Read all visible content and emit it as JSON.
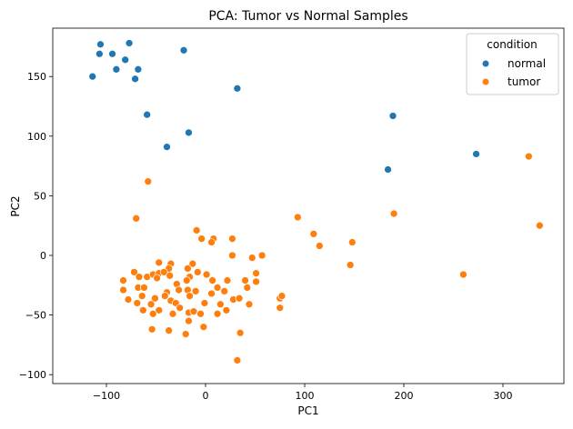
{
  "chart_data": {
    "type": "scatter",
    "title": "PCA: Tumor vs Normal Samples",
    "xlabel": "PC1",
    "ylabel": "PC2",
    "xlim": [
      -130,
      345
    ],
    "ylim": [
      -107,
      190
    ],
    "xticks": [
      -100,
      0,
      100,
      200,
      300
    ],
    "yticks": [
      -100,
      -50,
      0,
      50,
      100,
      150
    ],
    "grid": false,
    "legend": {
      "title": "condition",
      "placement": "top-right"
    },
    "series": [
      {
        "name": "normal",
        "color": "#1f77b4",
        "points": [
          [
            -114,
            150
          ],
          [
            -106,
            177
          ],
          [
            -107,
            169
          ],
          [
            -94,
            169
          ],
          [
            -90,
            156
          ],
          [
            -81,
            164
          ],
          [
            -77,
            178
          ],
          [
            -68,
            156
          ],
          [
            -71,
            148
          ],
          [
            -22,
            172
          ],
          [
            -59,
            118
          ],
          [
            -39,
            91
          ],
          [
            -17,
            103
          ],
          [
            32,
            140
          ],
          [
            189,
            117
          ],
          [
            184,
            72
          ],
          [
            273,
            85
          ]
        ]
      },
      {
        "name": "tumor",
        "color": "#ff7f0e",
        "points": [
          [
            -58,
            62
          ],
          [
            -70,
            31
          ],
          [
            93,
            32
          ],
          [
            109,
            18
          ],
          [
            115,
            8
          ],
          [
            148,
            11
          ],
          [
            146,
            -8
          ],
          [
            190,
            35
          ],
          [
            260,
            -16
          ],
          [
            326,
            83
          ],
          [
            337,
            25
          ],
          [
            -9,
            21
          ],
          [
            -4,
            14
          ],
          [
            8,
            14
          ],
          [
            6,
            11
          ],
          [
            27,
            14
          ],
          [
            27,
            0
          ],
          [
            47,
            -2
          ],
          [
            57,
            0
          ],
          [
            -47,
            -6
          ],
          [
            -35,
            -7
          ],
          [
            -37,
            -11
          ],
          [
            -13,
            -7
          ],
          [
            -18,
            -11
          ],
          [
            -72,
            -14
          ],
          [
            -67,
            -18
          ],
          [
            -59,
            -18
          ],
          [
            -53,
            -16
          ],
          [
            -47,
            -15
          ],
          [
            -42,
            -14
          ],
          [
            -49,
            -19
          ],
          [
            -36,
            -17
          ],
          [
            -8,
            -14
          ],
          [
            -16,
            -18
          ],
          [
            1,
            -16
          ],
          [
            -83,
            -21
          ],
          [
            -29,
            -24
          ],
          [
            -19,
            -21
          ],
          [
            7,
            -21
          ],
          [
            22,
            -21
          ],
          [
            40,
            -21
          ],
          [
            51,
            -15
          ],
          [
            51,
            -22
          ],
          [
            -83,
            -29
          ],
          [
            -68,
            -27
          ],
          [
            -62,
            -27
          ],
          [
            -39,
            -31
          ],
          [
            -27,
            -29
          ],
          [
            -18,
            -29
          ],
          [
            -10,
            -30
          ],
          [
            12,
            -27
          ],
          [
            19,
            -30
          ],
          [
            42,
            -27
          ],
          [
            6,
            -32
          ],
          [
            -16,
            -34
          ],
          [
            -41,
            -34
          ],
          [
            -78,
            -37
          ],
          [
            -69,
            -40
          ],
          [
            -64,
            -34
          ],
          [
            -51,
            -36
          ],
          [
            -55,
            -41
          ],
          [
            -35,
            -38
          ],
          [
            -30,
            -40
          ],
          [
            -1,
            -40
          ],
          [
            15,
            -41
          ],
          [
            28,
            -37
          ],
          [
            34,
            -36
          ],
          [
            44,
            -41
          ],
          [
            -63,
            -46
          ],
          [
            -47,
            -46
          ],
          [
            -53,
            -49
          ],
          [
            -26,
            -44
          ],
          [
            -33,
            -49
          ],
          [
            -17,
            -48
          ],
          [
            -12,
            -47
          ],
          [
            -5,
            -49
          ],
          [
            12,
            -49
          ],
          [
            21,
            -46
          ],
          [
            -17,
            -55
          ],
          [
            -2,
            -60
          ],
          [
            -54,
            -62
          ],
          [
            -37,
            -63
          ],
          [
            -20,
            -66
          ],
          [
            35,
            -65
          ],
          [
            32,
            -88
          ],
          [
            75,
            -36
          ],
          [
            75,
            -44
          ],
          [
            77,
            -34
          ]
        ]
      }
    ]
  }
}
